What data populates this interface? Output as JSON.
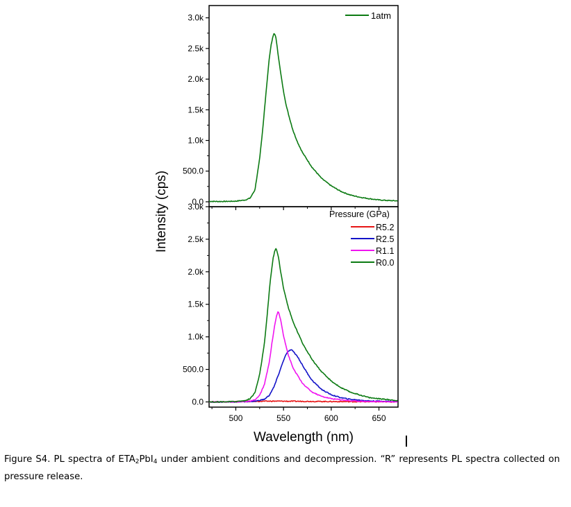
{
  "figure": {
    "ylabel": "Intensity (cps)",
    "xlabel": "Wavelength (nm)",
    "x_ticks": [
      "500",
      "550",
      "600",
      "650"
    ]
  },
  "caption": {
    "prefix": "Figure S4. PL spectra of ETA",
    "sub1": "2",
    "mid": "PbI",
    "sub2": "4",
    "suffix": " under ambient conditions and decompression. “R” represents PL spectra collected on pressure release."
  },
  "chart_data": [
    {
      "type": "line",
      "panel": "top",
      "xlabel": "Wavelength (nm)",
      "ylabel": "Intensity (cps)",
      "xlim": [
        472,
        670
      ],
      "ylim": [
        -80,
        3200
      ],
      "y_ticks": [
        "0.0",
        "500.0",
        "1.0k",
        "1.5k",
        "2.0k",
        "2.5k",
        "3.0k"
      ],
      "legend_position": "top-right",
      "series": [
        {
          "name": "1atm",
          "color": "#0b7a12",
          "x": [
            472,
            480,
            490,
            500,
            510,
            515,
            520,
            525,
            528,
            530,
            533,
            535,
            537,
            539,
            540,
            541,
            542,
            543,
            545,
            547,
            550,
            553,
            556,
            560,
            565,
            570,
            580,
            590,
            600,
            610,
            620,
            630,
            640,
            650,
            660,
            670
          ],
          "y": [
            8,
            5,
            6,
            10,
            30,
            60,
            190,
            700,
            1150,
            1500,
            2000,
            2330,
            2560,
            2700,
            2740,
            2730,
            2680,
            2560,
            2330,
            2100,
            1800,
            1560,
            1380,
            1160,
            960,
            800,
            560,
            380,
            260,
            170,
            110,
            75,
            50,
            30,
            20,
            15
          ]
        }
      ]
    },
    {
      "type": "line",
      "panel": "bottom",
      "xlabel": "Wavelength (nm)",
      "ylabel": "Intensity (cps)",
      "xlim": [
        472,
        670
      ],
      "ylim": [
        -80,
        3000
      ],
      "y_ticks": [
        "0.0",
        "500.0",
        "1.0k",
        "1.5k",
        "2.0k",
        "2.5k",
        "3.0k"
      ],
      "legend_title": "Pressure (GPa)",
      "legend_position": "top-right",
      "series": [
        {
          "name": "R5.2",
          "color": "#e61414",
          "x": [
            472,
            500,
            520,
            540,
            560,
            580,
            600,
            620,
            640,
            670
          ],
          "y": [
            0,
            4,
            8,
            12,
            10,
            8,
            6,
            4,
            3,
            2
          ]
        },
        {
          "name": "R2.5",
          "color": "#1212c8",
          "x": [
            472,
            500,
            520,
            530,
            535,
            540,
            545,
            550,
            553,
            556,
            558,
            560,
            565,
            570,
            575,
            580,
            590,
            600,
            610,
            620,
            640,
            670
          ],
          "y": [
            0,
            0,
            10,
            40,
            100,
            230,
            430,
            640,
            740,
            790,
            800,
            780,
            690,
            560,
            440,
            330,
            190,
            110,
            65,
            40,
            15,
            5
          ]
        },
        {
          "name": "R1.1",
          "color": "#f014f0",
          "x": [
            472,
            500,
            515,
            520,
            525,
            530,
            535,
            538,
            541,
            543,
            544,
            545,
            547,
            550,
            555,
            560,
            570,
            580,
            590,
            600,
            620,
            640,
            670
          ],
          "y": [
            0,
            0,
            10,
            30,
            100,
            270,
            600,
            920,
            1200,
            1340,
            1380,
            1370,
            1260,
            1020,
            720,
            520,
            280,
            150,
            85,
            50,
            18,
            6,
            2
          ]
        },
        {
          "name": "R0.0",
          "color": "#0b7a12",
          "x": [
            472,
            500,
            510,
            515,
            520,
            525,
            530,
            533,
            536,
            539,
            541,
            542,
            543,
            545,
            547,
            550,
            555,
            560,
            570,
            580,
            590,
            600,
            610,
            620,
            640,
            670
          ],
          "y": [
            0,
            5,
            20,
            50,
            140,
            420,
            900,
            1350,
            1850,
            2200,
            2330,
            2350,
            2330,
            2200,
            2000,
            1750,
            1450,
            1230,
            900,
            650,
            460,
            320,
            220,
            150,
            65,
            20
          ]
        }
      ]
    }
  ]
}
